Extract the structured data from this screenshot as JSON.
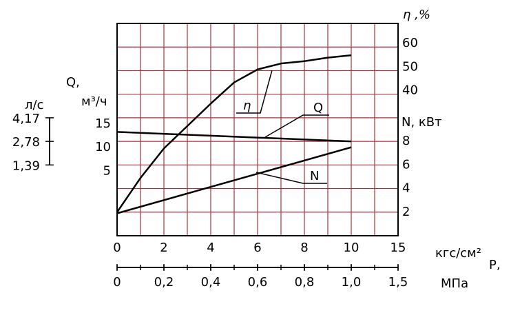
{
  "chart_data": {
    "type": "line",
    "x_label": "Р,",
    "x_units": "кгс/см²",
    "x2_units": "МПа",
    "xlim": [
      0,
      12
    ],
    "x_tick_labels": [
      "0",
      "2",
      "4",
      "6",
      "8",
      "10",
      "15"
    ],
    "x2_tick_labels": [
      "0",
      "0,2",
      "0,4",
      "0,6",
      "0,8",
      "1,0",
      "1,5"
    ],
    "grid": true,
    "grid_color": "#a8323a",
    "q_axis": {
      "label": "Q,",
      "units": "м³/ч",
      "ylim": [
        -10,
        35
      ],
      "yticks": [
        5,
        10,
        15
      ]
    },
    "ls_axis": {
      "label": "л/с",
      "ticks": [
        "1,39",
        "2,78",
        "4,17"
      ]
    },
    "eta_axis": {
      "label": "η ,%",
      "ylim": [
        -20,
        70
      ],
      "yticks": [
        40,
        50,
        60
      ]
    },
    "n_axis": {
      "label": "N, кВт",
      "ylim": [
        0,
        18
      ],
      "yticks": [
        2,
        4,
        6,
        8
      ]
    },
    "series": [
      {
        "name": "η",
        "axis": "eta_axis",
        "color": "#000000",
        "x": [
          0,
          1,
          2,
          4,
          5,
          6,
          7,
          8,
          9,
          10
        ],
        "values": [
          -10,
          4.5,
          17,
          36,
          45,
          50.5,
          53,
          54,
          55.5,
          56.5
        ]
      },
      {
        "name": "Q",
        "axis": "q_axis",
        "color": "#000000",
        "x": [
          0,
          10
        ],
        "values": [
          12,
          10
        ]
      },
      {
        "name": "N",
        "axis": "n_axis",
        "color": "#000000",
        "x": [
          0,
          10
        ],
        "values": [
          1.9,
          7.5
        ]
      }
    ]
  }
}
